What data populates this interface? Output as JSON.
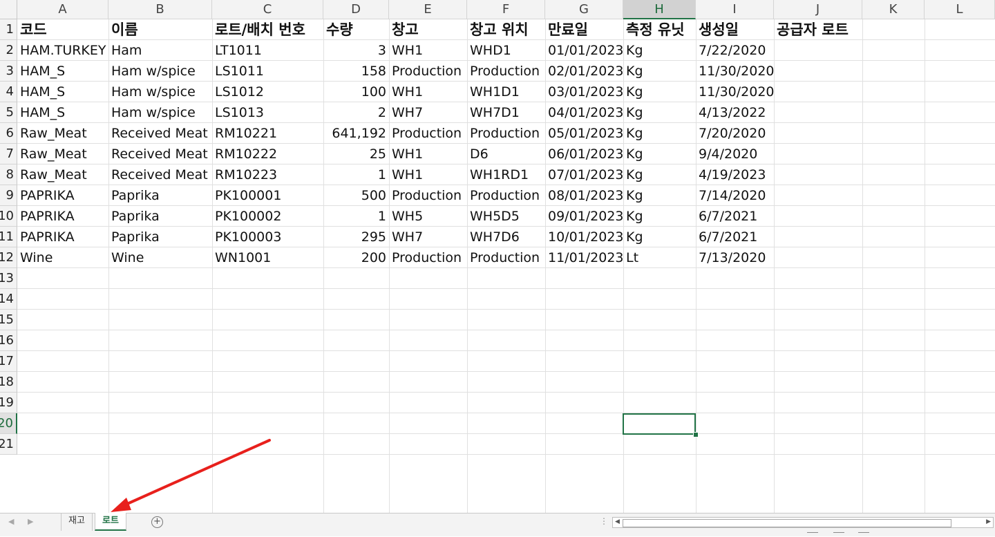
{
  "columns": [
    "A",
    "B",
    "C",
    "D",
    "E",
    "F",
    "G",
    "H",
    "I",
    "J",
    "K",
    "L"
  ],
  "selected_column": "H",
  "selected_row": 20,
  "header_row": [
    "코드",
    "이름",
    "로트/배치 번호",
    "수량",
    "창고",
    "창고 위치",
    "만료일",
    "측정 유닛",
    "생성일",
    "공급자 로트",
    "",
    ""
  ],
  "rows": [
    [
      "HAM.TURKEY",
      "Ham",
      "LT1011",
      "3",
      "WH1",
      "WHD1",
      "01/01/2023",
      "Kg",
      "7/22/2020"
    ],
    [
      "HAM_S",
      "Ham w/spice",
      "LS1011",
      "158",
      "Production",
      "Production",
      "02/01/2023",
      "Kg",
      "11/30/2020"
    ],
    [
      "HAM_S",
      "Ham w/spice",
      "LS1012",
      "100",
      "WH1",
      "WH1D1",
      "03/01/2023",
      "Kg",
      "11/30/2020"
    ],
    [
      "HAM_S",
      "Ham w/spice",
      "LS1013",
      "2",
      "WH7",
      "WH7D1",
      "04/01/2023",
      "Kg",
      "4/13/2022"
    ],
    [
      "Raw_Meat",
      "Received Meat",
      "RM10221",
      "641,192",
      "Production",
      "Production",
      "05/01/2023",
      "Kg",
      "7/20/2020"
    ],
    [
      "Raw_Meat",
      "Received Meat",
      "RM10222",
      "25",
      "WH1",
      "D6",
      "06/01/2023",
      "Kg",
      "9/4/2020"
    ],
    [
      "Raw_Meat",
      "Received Meat",
      "RM10223",
      "1",
      "WH1",
      "WH1RD1",
      "07/01/2023",
      "Kg",
      "4/19/2023"
    ],
    [
      "PAPRIKA",
      "Paprika",
      "PK100001",
      "500",
      "Production",
      "Production",
      "08/01/2023",
      "Kg",
      "7/14/2020"
    ],
    [
      "PAPRIKA",
      "Paprika",
      "PK100002",
      "1",
      "WH5",
      "WH5D5",
      "09/01/2023",
      "Kg",
      "6/7/2021"
    ],
    [
      "PAPRIKA",
      "Paprika",
      "PK100003",
      "295",
      "WH7",
      "WH7D6",
      "10/01/2023",
      "Kg",
      "6/7/2021"
    ],
    [
      "Wine",
      "Wine",
      "WN1001",
      "200",
      "Production",
      "Production",
      "11/01/2023",
      "Lt",
      "7/13/2020"
    ]
  ],
  "row_numbers": [
    "1",
    "2",
    "3",
    "4",
    "5",
    "6",
    "7",
    "8",
    "9",
    "10",
    "11",
    "12",
    "13",
    "14",
    "15",
    "16",
    "17",
    "18",
    "19",
    "20",
    "21"
  ],
  "sheet_tabs": [
    {
      "label": "재고",
      "active": false
    },
    {
      "label": "로트",
      "active": true
    }
  ],
  "add_sheet_label": "+",
  "colors": {
    "accent": "#217346",
    "arrow": "#e8201c"
  },
  "annotation": {
    "type": "arrow",
    "points_to": "sheet-tab-로트"
  }
}
